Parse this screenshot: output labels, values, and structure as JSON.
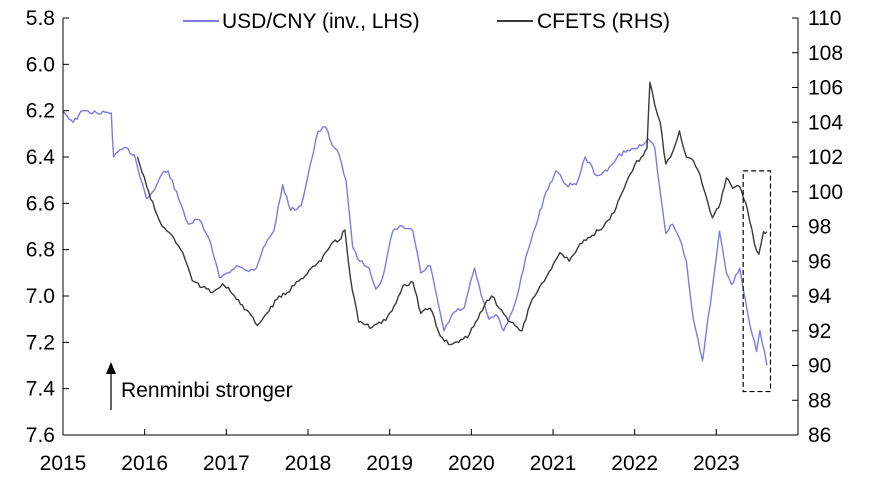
{
  "chart_data": {
    "type": "line",
    "title": "",
    "x_axis": {
      "ticks": [
        "2015",
        "2016",
        "2017",
        "2018",
        "2019",
        "2020",
        "2021",
        "2022",
        "2023"
      ],
      "range": [
        "2015-01-01",
        "2023-12-31"
      ]
    },
    "y_left": {
      "label": "",
      "range": [
        5.8,
        7.6
      ],
      "inverted": true,
      "ticks": [
        "5.8",
        "6.0",
        "6.2",
        "6.4",
        "6.6",
        "6.8",
        "7.0",
        "7.2",
        "7.4",
        "7.6"
      ]
    },
    "y_right": {
      "label": "",
      "range": [
        86,
        110
      ],
      "ticks": [
        "86",
        "88",
        "90",
        "92",
        "94",
        "96",
        "98",
        "100",
        "102",
        "104",
        "106",
        "108",
        "110"
      ]
    },
    "grid": false,
    "legend": {
      "placement": "top"
    },
    "series": [
      {
        "name": "USD/CNY (inv., LHS)",
        "axis": "left",
        "color": "#7b7be8",
        "points": [
          [
            "2015-01-01",
            6.2
          ],
          [
            "2015-02-15",
            6.25
          ],
          [
            "2015-04-01",
            6.2
          ],
          [
            "2015-06-01",
            6.21
          ],
          [
            "2015-08-05",
            6.21
          ],
          [
            "2015-08-15",
            6.4
          ],
          [
            "2015-10-01",
            6.36
          ],
          [
            "2015-11-15",
            6.39
          ],
          [
            "2016-01-10",
            6.58
          ],
          [
            "2016-02-15",
            6.54
          ],
          [
            "2016-03-20",
            6.47
          ],
          [
            "2016-04-15",
            6.46
          ],
          [
            "2016-06-01",
            6.58
          ],
          [
            "2016-07-15",
            6.69
          ],
          [
            "2016-09-01",
            6.67
          ],
          [
            "2016-10-15",
            6.75
          ],
          [
            "2016-12-01",
            6.92
          ],
          [
            "2017-01-05",
            6.9
          ],
          [
            "2017-02-15",
            6.87
          ],
          [
            "2017-04-01",
            6.89
          ],
          [
            "2017-05-15",
            6.88
          ],
          [
            "2017-06-15",
            6.79
          ],
          [
            "2017-08-01",
            6.72
          ],
          [
            "2017-09-10",
            6.52
          ],
          [
            "2017-10-15",
            6.63
          ],
          [
            "2017-12-01",
            6.61
          ],
          [
            "2018-01-15",
            6.42
          ],
          [
            "2018-02-15",
            6.29
          ],
          [
            "2018-03-20",
            6.27
          ],
          [
            "2018-04-20",
            6.35
          ],
          [
            "2018-05-20",
            6.39
          ],
          [
            "2018-06-20",
            6.5
          ],
          [
            "2018-07-20",
            6.79
          ],
          [
            "2018-08-20",
            6.85
          ],
          [
            "2018-10-01",
            6.88
          ],
          [
            "2018-10-31",
            6.97
          ],
          [
            "2018-12-01",
            6.92
          ],
          [
            "2019-01-15",
            6.72
          ],
          [
            "2019-03-01",
            6.7
          ],
          [
            "2019-04-15",
            6.72
          ],
          [
            "2019-05-20",
            6.9
          ],
          [
            "2019-07-01",
            6.87
          ],
          [
            "2019-08-10",
            7.05
          ],
          [
            "2019-09-01",
            7.15
          ],
          [
            "2019-10-15",
            7.07
          ],
          [
            "2019-12-01",
            7.05
          ],
          [
            "2020-01-15",
            6.88
          ],
          [
            "2020-02-15",
            7.0
          ],
          [
            "2020-03-20",
            7.1
          ],
          [
            "2020-04-20",
            7.08
          ],
          [
            "2020-05-25",
            7.15
          ],
          [
            "2020-07-01",
            7.07
          ],
          [
            "2020-08-01",
            6.97
          ],
          [
            "2020-09-01",
            6.83
          ],
          [
            "2020-10-15",
            6.7
          ],
          [
            "2020-12-01",
            6.55
          ],
          [
            "2021-01-15",
            6.46
          ],
          [
            "2021-03-01",
            6.52
          ],
          [
            "2021-04-15",
            6.52
          ],
          [
            "2021-05-25",
            6.4
          ],
          [
            "2021-07-15",
            6.48
          ],
          [
            "2021-09-01",
            6.46
          ],
          [
            "2021-10-15",
            6.4
          ],
          [
            "2021-12-01",
            6.37
          ],
          [
            "2022-01-15",
            6.36
          ],
          [
            "2022-03-01",
            6.32
          ],
          [
            "2022-04-01",
            6.36
          ],
          [
            "2022-04-25",
            6.55
          ],
          [
            "2022-05-20",
            6.73
          ],
          [
            "2022-06-20",
            6.69
          ],
          [
            "2022-07-20",
            6.75
          ],
          [
            "2022-08-20",
            6.85
          ],
          [
            "2022-09-20",
            7.1
          ],
          [
            "2022-10-31",
            7.28
          ],
          [
            "2022-11-15",
            7.17
          ],
          [
            "2022-12-15",
            6.96
          ],
          [
            "2023-01-15",
            6.72
          ],
          [
            "2023-02-15",
            6.9
          ],
          [
            "2023-03-10",
            6.95
          ],
          [
            "2023-04-15",
            6.88
          ],
          [
            "2023-05-20",
            7.07
          ],
          [
            "2023-06-30",
            7.24
          ],
          [
            "2023-07-15",
            7.15
          ],
          [
            "2023-08-15",
            7.3
          ]
        ]
      },
      {
        "name": "CFETS (RHS)",
        "axis": "right",
        "color": "#3a3a3a",
        "points": [
          [
            "2015-11-30",
            102.0
          ],
          [
            "2016-01-10",
            100.3
          ],
          [
            "2016-02-15",
            99.0
          ],
          [
            "2016-03-20",
            98.0
          ],
          [
            "2016-05-01",
            97.5
          ],
          [
            "2016-06-20",
            96.5
          ],
          [
            "2016-08-01",
            94.9
          ],
          [
            "2016-09-15",
            94.5
          ],
          [
            "2016-11-01",
            94.2
          ],
          [
            "2016-12-15",
            94.7
          ],
          [
            "2017-01-10",
            94.5
          ],
          [
            "2017-02-15",
            93.8
          ],
          [
            "2017-04-01",
            93.2
          ],
          [
            "2017-05-20",
            92.3
          ],
          [
            "2017-07-01",
            93.0
          ],
          [
            "2017-08-15",
            93.8
          ],
          [
            "2017-10-01",
            94.2
          ],
          [
            "2017-12-01",
            95.0
          ],
          [
            "2018-01-15",
            95.6
          ],
          [
            "2018-03-01",
            96.0
          ],
          [
            "2018-04-15",
            97.0
          ],
          [
            "2018-05-20",
            97.2
          ],
          [
            "2018-06-15",
            97.8
          ],
          [
            "2018-07-10",
            95.0
          ],
          [
            "2018-08-15",
            92.5
          ],
          [
            "2018-10-15",
            92.2
          ],
          [
            "2018-12-15",
            92.6
          ],
          [
            "2019-01-20",
            93.4
          ],
          [
            "2019-03-01",
            94.6
          ],
          [
            "2019-04-15",
            94.8
          ],
          [
            "2019-05-20",
            93.0
          ],
          [
            "2019-07-01",
            93.3
          ],
          [
            "2019-08-15",
            91.7
          ],
          [
            "2019-10-01",
            91.2
          ],
          [
            "2019-11-15",
            91.5
          ],
          [
            "2019-12-15",
            91.6
          ],
          [
            "2020-01-20",
            92.5
          ],
          [
            "2020-03-01",
            93.5
          ],
          [
            "2020-04-01",
            94.0
          ],
          [
            "2020-05-15",
            93.2
          ],
          [
            "2020-06-25",
            92.5
          ],
          [
            "2020-08-15",
            92.0
          ],
          [
            "2020-09-20",
            93.5
          ],
          [
            "2020-11-01",
            94.5
          ],
          [
            "2020-12-15",
            95.4
          ],
          [
            "2021-02-01",
            96.5
          ],
          [
            "2021-03-15",
            96.0
          ],
          [
            "2021-05-01",
            97.0
          ],
          [
            "2021-06-25",
            97.5
          ],
          [
            "2021-08-15",
            98.0
          ],
          [
            "2021-10-01",
            98.8
          ],
          [
            "2021-11-15",
            100.2
          ],
          [
            "2021-12-31",
            101.5
          ],
          [
            "2022-01-31",
            102.0
          ],
          [
            "2022-02-25",
            102.5
          ],
          [
            "2022-03-10",
            106.3
          ],
          [
            "2022-04-01",
            105.0
          ],
          [
            "2022-04-25",
            104.0
          ],
          [
            "2022-05-20",
            101.6
          ],
          [
            "2022-06-20",
            102.3
          ],
          [
            "2022-07-20",
            103.5
          ],
          [
            "2022-08-20",
            102.0
          ],
          [
            "2022-09-20",
            101.8
          ],
          [
            "2022-10-20",
            101.0
          ],
          [
            "2022-11-15",
            99.8
          ],
          [
            "2022-12-15",
            98.5
          ],
          [
            "2023-01-20",
            99.4
          ],
          [
            "2023-02-15",
            100.8
          ],
          [
            "2023-03-15",
            100.2
          ],
          [
            "2023-04-15",
            100.3
          ],
          [
            "2023-05-20",
            99.0
          ],
          [
            "2023-06-20",
            97.0
          ],
          [
            "2023-07-10",
            96.4
          ],
          [
            "2023-07-31",
            97.7
          ],
          [
            "2023-08-15",
            97.7
          ]
        ]
      }
    ],
    "annotations": [
      {
        "type": "arrow",
        "text": "Renminbi stronger",
        "direction": "up"
      },
      {
        "type": "dashed-box",
        "x_range": [
          "2023-05-01",
          "2023-08-31"
        ],
        "y_right_range": [
          88.5,
          101.2
        ]
      }
    ]
  }
}
